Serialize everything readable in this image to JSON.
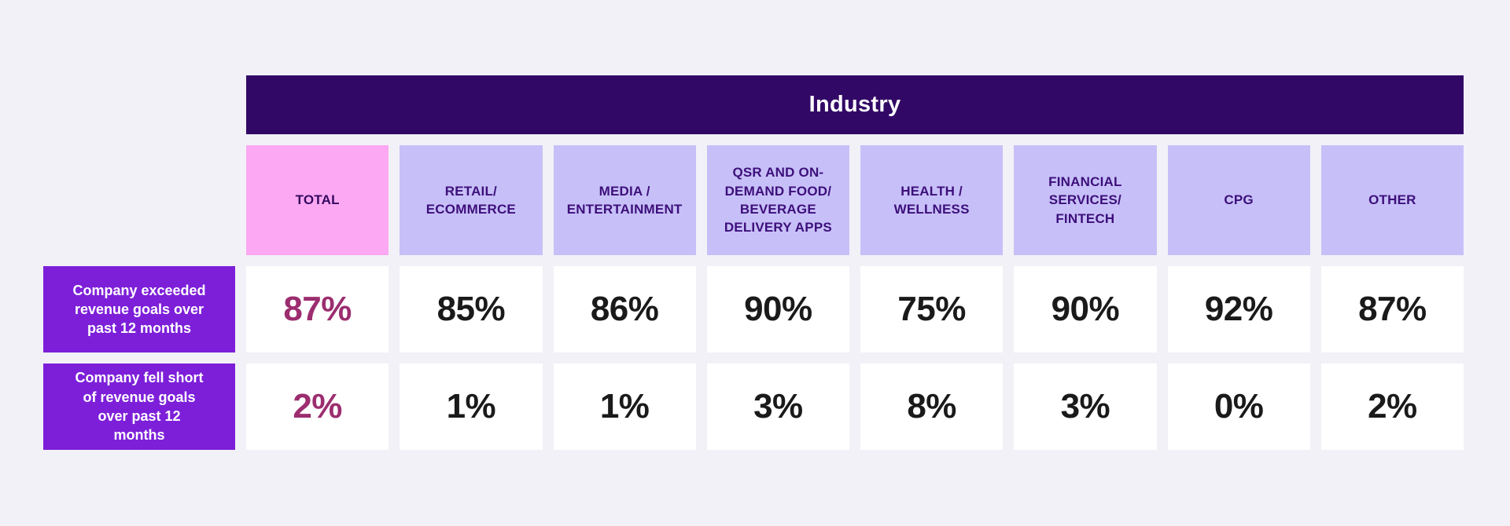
{
  "title": "Industry",
  "display": {
    "columns": [
      "TOTAL",
      "RETAIL/\nECOMMERCE",
      "MEDIA /\nENTERTAINMENT",
      "QSR AND ON-\nDEMAND FOOD/\nBEVERAGE\nDELIVERY APPS",
      "HEALTH /\nWELLNESS",
      "FINANCIAL\nSERVICES/\nFINTECH",
      "CPG",
      "OTHER"
    ],
    "rows": [
      {
        "label": "Company exceeded\nrevenue goals over\npast 12 months",
        "values": [
          "87%",
          "85%",
          "86%",
          "90%",
          "75%",
          "90%",
          "92%",
          "87%"
        ]
      },
      {
        "label": "Company fell short\nof revenue goals\nover past 12\nmonths",
        "values": [
          "2%",
          "1%",
          "1%",
          "3%",
          "8%",
          "3%",
          "0%",
          "2%"
        ]
      }
    ]
  },
  "chart_data": {
    "type": "table",
    "title": "Industry",
    "categories": [
      "TOTAL",
      "RETAIL/ECOMMERCE",
      "MEDIA / ENTERTAINMENT",
      "QSR AND ON-DEMAND FOOD/BEVERAGE DELIVERY APPS",
      "HEALTH / WELLNESS",
      "FINANCIAL SERVICES/FINTECH",
      "CPG",
      "OTHER"
    ],
    "series": [
      {
        "name": "Company exceeded revenue goals over past 12 months",
        "values": [
          87,
          85,
          86,
          90,
          75,
          90,
          92,
          87
        ],
        "unit": "%"
      },
      {
        "name": "Company fell short of revenue goals over past 12 months",
        "values": [
          2,
          1,
          1,
          3,
          8,
          3,
          0,
          2
        ],
        "unit": "%"
      }
    ],
    "legend_position": "none",
    "grid": false
  },
  "colors": {
    "page_bg": "#f2f1f7",
    "industry_bar_bg": "#320866",
    "industry_bar_text": "#ffffff",
    "total_header_bg": "#fca8f3",
    "column_header_bg": "#c7c0f8",
    "column_header_text": "#3d0f7b",
    "row_header_bg": "#7d1fd9",
    "row_header_text": "#ffffff",
    "cell_bg": "#ffffff",
    "value_text": "#1a1a1a",
    "total_value_text": "#9c2d6f"
  }
}
